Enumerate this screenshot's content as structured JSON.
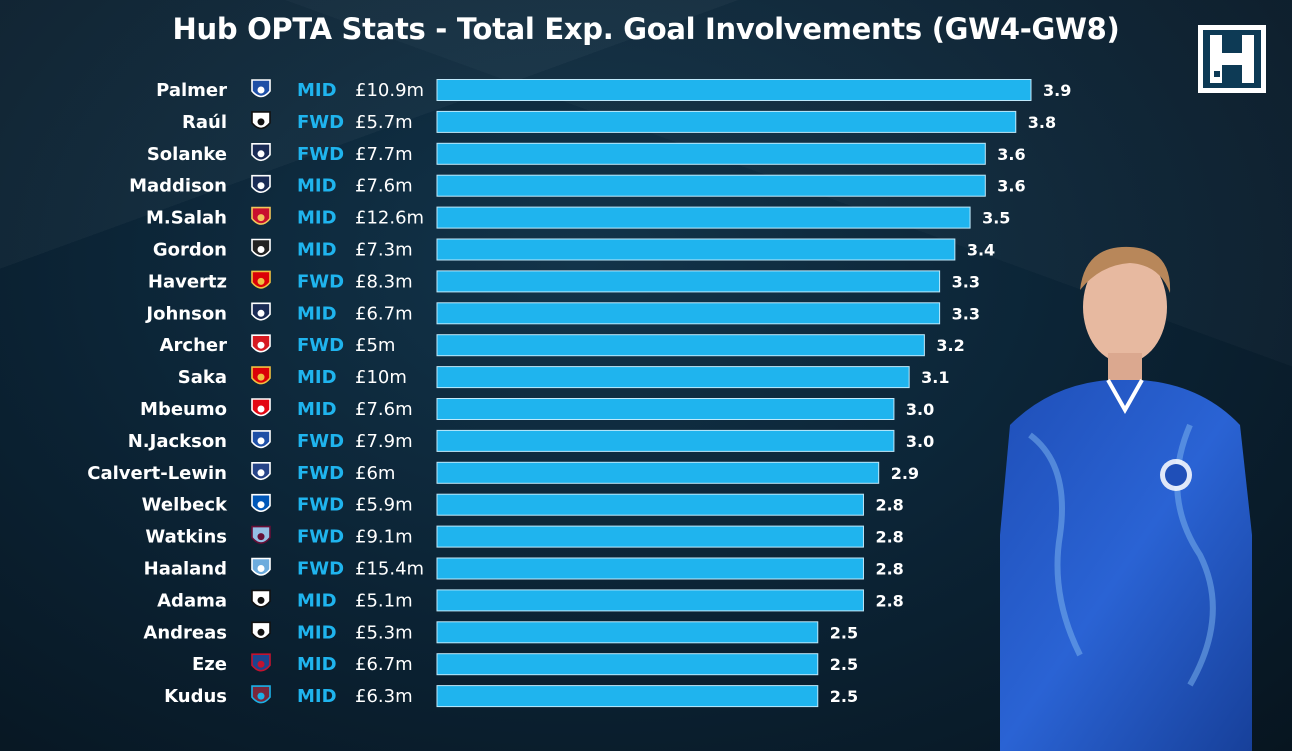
{
  "header": {
    "title": "Hub OPTA Stats - Total Exp. Goal Involvements (GW4-GW8)"
  },
  "logo": {
    "icon": "fantasy-football-hub-logo-icon"
  },
  "colors": {
    "bar": "#1fb4ee",
    "position": "#1fb4ee",
    "text": "#ffffff",
    "background": "#0b2233"
  },
  "chart_data": {
    "type": "bar",
    "orientation": "horizontal",
    "title": "Hub OPTA Stats - Total Exp. Goal Involvements (GW4-GW8)",
    "xlim": [
      0,
      3.9
    ],
    "rows": [
      {
        "player": "Palmer",
        "club_icon": "chelsea-crest-icon",
        "position": "MID",
        "price": "£10.9m",
        "value": 3.9,
        "label": "3.9"
      },
      {
        "player": "Raúl",
        "club_icon": "fulham-crest-icon",
        "position": "FWD",
        "price": "£5.7m",
        "value": 3.8,
        "label": "3.8"
      },
      {
        "player": "Solanke",
        "club_icon": "tottenham-crest-icon",
        "position": "FWD",
        "price": "£7.7m",
        "value": 3.6,
        "label": "3.6"
      },
      {
        "player": "Maddison",
        "club_icon": "tottenham-crest-icon",
        "position": "MID",
        "price": "£7.6m",
        "value": 3.6,
        "label": "3.6"
      },
      {
        "player": "M.Salah",
        "club_icon": "liverpool-crest-icon",
        "position": "MID",
        "price": "£12.6m",
        "value": 3.5,
        "label": "3.5"
      },
      {
        "player": "Gordon",
        "club_icon": "newcastle-crest-icon",
        "position": "MID",
        "price": "£7.3m",
        "value": 3.4,
        "label": "3.4"
      },
      {
        "player": "Havertz",
        "club_icon": "arsenal-crest-icon",
        "position": "FWD",
        "price": "£8.3m",
        "value": 3.3,
        "label": "3.3"
      },
      {
        "player": "Johnson",
        "club_icon": "tottenham-crest-icon",
        "position": "MID",
        "price": "£6.7m",
        "value": 3.3,
        "label": "3.3"
      },
      {
        "player": "Archer",
        "club_icon": "southampton-crest-icon",
        "position": "FWD",
        "price": "£5m",
        "value": 3.2,
        "label": "3.2"
      },
      {
        "player": "Saka",
        "club_icon": "arsenal-crest-icon",
        "position": "MID",
        "price": "£10m",
        "value": 3.1,
        "label": "3.1"
      },
      {
        "player": "Mbeumo",
        "club_icon": "brentford-crest-icon",
        "position": "MID",
        "price": "£7.6m",
        "value": 3.0,
        "label": "3.0"
      },
      {
        "player": "N.Jackson",
        "club_icon": "chelsea-crest-icon",
        "position": "FWD",
        "price": "£7.9m",
        "value": 3.0,
        "label": "3.0"
      },
      {
        "player": "Calvert-Lewin",
        "club_icon": "everton-crest-icon",
        "position": "FWD",
        "price": "£6m",
        "value": 2.9,
        "label": "2.9"
      },
      {
        "player": "Welbeck",
        "club_icon": "brighton-crest-icon",
        "position": "FWD",
        "price": "£5.9m",
        "value": 2.8,
        "label": "2.8"
      },
      {
        "player": "Watkins",
        "club_icon": "aston-villa-crest-icon",
        "position": "FWD",
        "price": "£9.1m",
        "value": 2.8,
        "label": "2.8"
      },
      {
        "player": "Haaland",
        "club_icon": "man-city-crest-icon",
        "position": "FWD",
        "price": "£15.4m",
        "value": 2.8,
        "label": "2.8"
      },
      {
        "player": "Adama",
        "club_icon": "fulham-crest-icon",
        "position": "MID",
        "price": "£5.1m",
        "value": 2.8,
        "label": "2.8"
      },
      {
        "player": "Andreas",
        "club_icon": "fulham-crest-icon",
        "position": "MID",
        "price": "£5.3m",
        "value": 2.5,
        "label": "2.5"
      },
      {
        "player": "Eze",
        "club_icon": "crystal-palace-crest-icon",
        "position": "MID",
        "price": "£6.7m",
        "value": 2.5,
        "label": "2.5"
      },
      {
        "player": "Kudus",
        "club_icon": "west-ham-crest-icon",
        "position": "MID",
        "price": "£6.3m",
        "value": 2.5,
        "label": "2.5"
      }
    ]
  },
  "photo": {
    "icon": "player-photo-icon"
  }
}
